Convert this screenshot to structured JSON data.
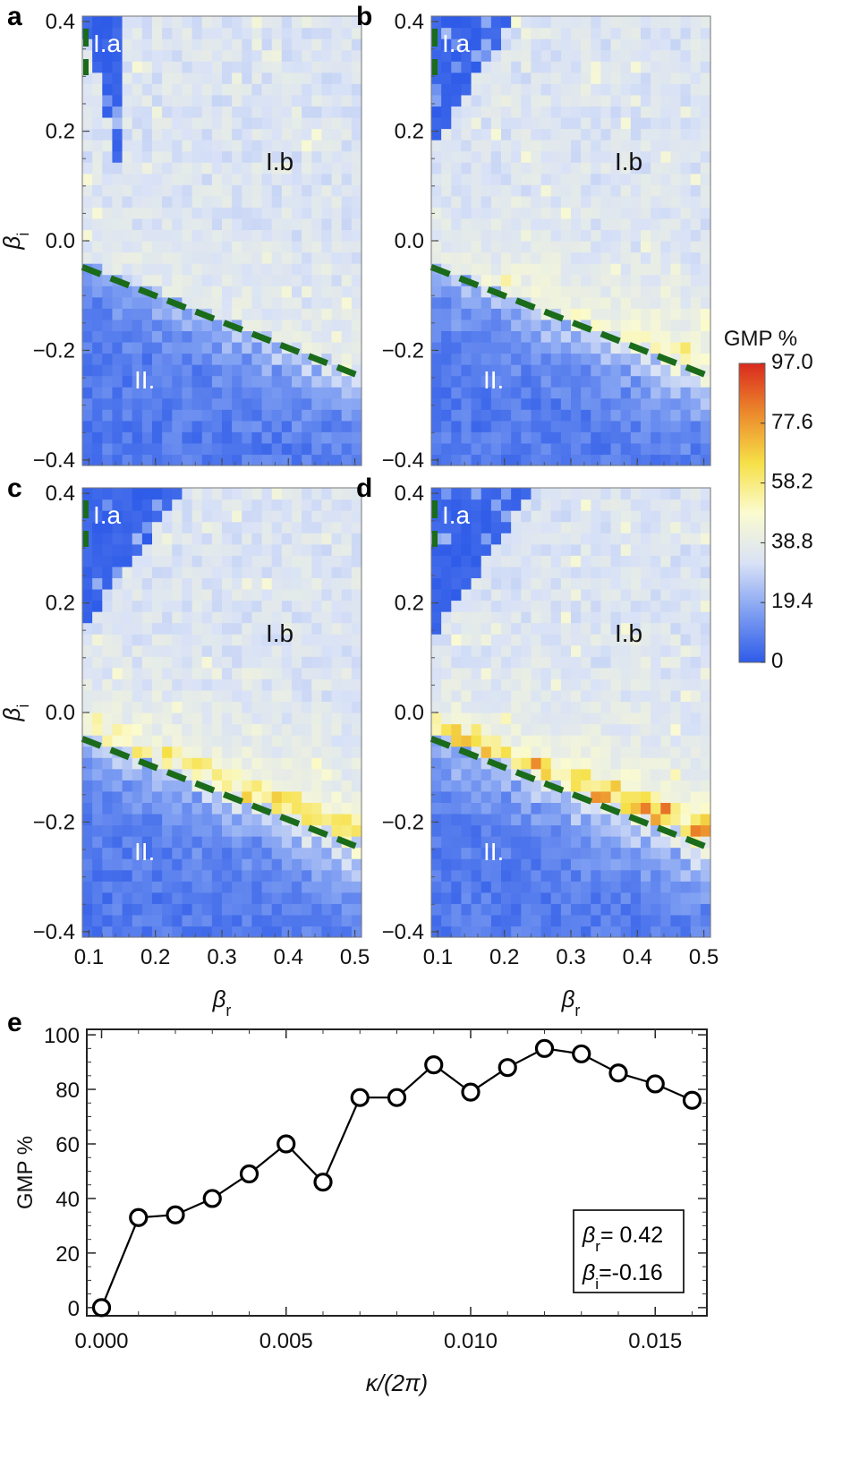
{
  "chart_data": [
    {
      "panel": "a",
      "type": "heatmap",
      "xlabel": "β",
      "xlabel_sub": "r",
      "ylabel": "β",
      "ylabel_sub": "i",
      "xlim": [
        0.09,
        0.51
      ],
      "ylim": [
        -0.41,
        0.41
      ],
      "xticks": [
        "0.1",
        "0.2",
        "0.3",
        "0.4",
        "0.5"
      ],
      "yticks": [
        "−0.4",
        "−0.2",
        "0.0",
        "0.2",
        "0.4"
      ],
      "regions": [
        "I.a",
        "I.b",
        "II."
      ],
      "region_labels": {
        "Ia": "I.a",
        "Ib": "I.b",
        "II": "II."
      },
      "boundary_line": {
        "x": [
          0.09,
          0.51
        ],
        "y": [
          -0.048,
          -0.248
        ]
      },
      "peak_level": 0.0,
      "upper_region_edge": {
        "x": [
          0.08,
          0.13
        ],
        "y": [
          0.46,
          0.21
        ]
      },
      "grid": {
        "nx": 28,
        "ny": 40
      },
      "seed": 11
    },
    {
      "panel": "b",
      "type": "heatmap",
      "xlim": [
        0.09,
        0.51
      ],
      "ylim": [
        -0.41,
        0.41
      ],
      "xticks": [
        "0.1",
        "0.2",
        "0.3",
        "0.4",
        "0.5"
      ],
      "yticks": [
        "−0.4",
        "−0.2",
        "0.0",
        "0.2",
        "0.4"
      ],
      "region_labels": {
        "Ia": "I.a",
        "Ib": "I.b",
        "II": "II."
      },
      "boundary_line": {
        "x": [
          0.09,
          0.51
        ],
        "y": [
          -0.048,
          -0.248
        ]
      },
      "peak_level": 0.55,
      "upper_region_edge": {
        "x": [
          0.08,
          0.24
        ],
        "y": [
          0.15,
          0.46
        ]
      },
      "grid": {
        "nx": 28,
        "ny": 40
      },
      "seed": 23
    },
    {
      "panel": "c",
      "type": "heatmap",
      "xlim": [
        0.09,
        0.51
      ],
      "ylim": [
        -0.41,
        0.41
      ],
      "xticks": [
        "0.1",
        "0.2",
        "0.3",
        "0.4",
        "0.5"
      ],
      "yticks": [
        "−0.4",
        "−0.2",
        "0.0",
        "0.2",
        "0.4"
      ],
      "region_labels": {
        "Ia": "I.a",
        "Ib": "I.b",
        "II": "II."
      },
      "boundary_line": {
        "x": [
          0.09,
          0.51
        ],
        "y": [
          -0.048,
          -0.248
        ]
      },
      "peak_level": 0.8,
      "upper_region_edge": {
        "x": [
          0.08,
          0.27
        ],
        "y": [
          0.14,
          0.45
        ]
      },
      "grid": {
        "nx": 28,
        "ny": 40
      },
      "seed": 37
    },
    {
      "panel": "d",
      "type": "heatmap",
      "xlim": [
        0.09,
        0.51
      ],
      "ylim": [
        -0.41,
        0.41
      ],
      "xticks": [
        "0.1",
        "0.2",
        "0.3",
        "0.4",
        "0.5"
      ],
      "yticks": [
        "−0.4",
        "−0.2",
        "0.0",
        "0.2",
        "0.4"
      ],
      "region_labels": {
        "Ia": "I.a",
        "Ib": "I.b",
        "II": "II."
      },
      "boundary_line": {
        "x": [
          0.09,
          0.51
        ],
        "y": [
          -0.048,
          -0.248
        ]
      },
      "peak_level": 1.0,
      "upper_region_edge": {
        "x": [
          0.08,
          0.27
        ],
        "y": [
          0.12,
          0.45
        ]
      },
      "grid": {
        "nx": 28,
        "ny": 40
      },
      "seed": 53
    },
    {
      "panel": "colorbar",
      "type": "colorbar",
      "title": "GMP %",
      "range": [
        0,
        97
      ],
      "ticks": [
        "97.0",
        "77.6",
        "58.2",
        "38.8",
        "19.4",
        "0"
      ],
      "colors": [
        "#2e5be8",
        "#7f9ff2",
        "#d9e2f6",
        "#fbfbd0",
        "#f6e047",
        "#ec8a2c",
        "#d92a1e"
      ]
    },
    {
      "panel": "e",
      "type": "line",
      "xlabel": "κ/(2π)",
      "ylabel": "GMP %",
      "xlim": [
        -0.0004,
        0.0164
      ],
      "ylim": [
        -3,
        102
      ],
      "xticks": [
        "0.000",
        "0.005",
        "0.010",
        "0.015"
      ],
      "yticks": [
        "0",
        "20",
        "40",
        "60",
        "80",
        "100"
      ],
      "x": [
        0.0,
        0.001,
        0.002,
        0.003,
        0.004,
        0.005,
        0.006,
        0.007,
        0.008,
        0.009,
        0.01,
        0.011,
        0.012,
        0.013,
        0.014,
        0.015,
        0.016
      ],
      "y": [
        0,
        33,
        34,
        40,
        49,
        60,
        46,
        77,
        77,
        89,
        79,
        88,
        95,
        93,
        86,
        82,
        76
      ],
      "legend": {
        "line1_symbol": "β",
        "line1_sub": "r",
        "line1_value": "= 0.42",
        "line2_symbol": "β",
        "line2_sub": "i",
        "line2_value": "=-0.16"
      }
    }
  ],
  "panel_letters": [
    "a",
    "b",
    "c",
    "d",
    "e"
  ]
}
